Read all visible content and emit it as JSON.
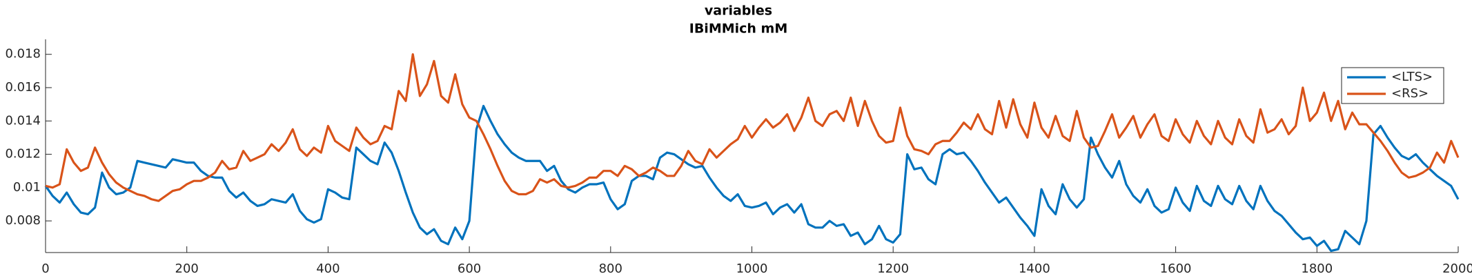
{
  "chart_data": {
    "type": "line",
    "title": "variables",
    "subtitle": "IBiMMich mM",
    "x": [
      0,
      10,
      20,
      30,
      40,
      50,
      60,
      70,
      80,
      90,
      100,
      110,
      120,
      130,
      140,
      150,
      160,
      170,
      180,
      190,
      200,
      210,
      220,
      230,
      240,
      250,
      260,
      270,
      280,
      290,
      300,
      310,
      320,
      330,
      340,
      350,
      360,
      370,
      380,
      390,
      400,
      410,
      420,
      430,
      440,
      450,
      460,
      470,
      480,
      490,
      500,
      510,
      520,
      530,
      540,
      550,
      560,
      570,
      580,
      590,
      600,
      610,
      620,
      630,
      640,
      650,
      660,
      670,
      680,
      690,
      700,
      710,
      720,
      730,
      740,
      750,
      760,
      770,
      780,
      790,
      800,
      810,
      820,
      830,
      840,
      850,
      860,
      870,
      880,
      890,
      900,
      910,
      920,
      930,
      940,
      950,
      960,
      970,
      980,
      990,
      1000,
      1010,
      1020,
      1030,
      1040,
      1050,
      1060,
      1070,
      1080,
      1090,
      1100,
      1110,
      1120,
      1130,
      1140,
      1150,
      1160,
      1170,
      1180,
      1190,
      1200,
      1210,
      1220,
      1230,
      1240,
      1250,
      1260,
      1270,
      1280,
      1290,
      1300,
      1310,
      1320,
      1330,
      1340,
      1350,
      1360,
      1370,
      1380,
      1390,
      1400,
      1410,
      1420,
      1430,
      1440,
      1450,
      1460,
      1470,
      1480,
      1490,
      1500,
      1510,
      1520,
      1530,
      1540,
      1550,
      1560,
      1570,
      1580,
      1590,
      1600,
      1610,
      1620,
      1630,
      1640,
      1650,
      1660,
      1670,
      1680,
      1690,
      1700,
      1710,
      1720,
      1730,
      1740,
      1750,
      1760,
      1770,
      1780,
      1790,
      1800,
      1810,
      1820,
      1830,
      1840,
      1850,
      1860,
      1870,
      1880,
      1890,
      1900,
      1910,
      1920,
      1930,
      1940,
      1950,
      1960,
      1970,
      1980,
      1990,
      2000
    ],
    "series": [
      {
        "name": "<LTS>",
        "color": "#0072BD",
        "values": [
          0.0101,
          0.0095,
          0.0091,
          0.0097,
          0.009,
          0.0085,
          0.0084,
          0.0088,
          0.0109,
          0.01,
          0.0096,
          0.0097,
          0.01,
          0.0116,
          0.0115,
          0.0114,
          0.0113,
          0.0112,
          0.0117,
          0.0116,
          0.0115,
          0.0115,
          0.011,
          0.0107,
          0.0106,
          0.0106,
          0.0098,
          0.0094,
          0.0097,
          0.0092,
          0.0089,
          0.009,
          0.0093,
          0.0092,
          0.0091,
          0.0096,
          0.0086,
          0.0081,
          0.0079,
          0.0081,
          0.0099,
          0.0097,
          0.0094,
          0.0093,
          0.0124,
          0.012,
          0.0116,
          0.0114,
          0.0127,
          0.0121,
          0.011,
          0.0097,
          0.0085,
          0.0076,
          0.0072,
          0.0075,
          0.0068,
          0.0066,
          0.0076,
          0.0069,
          0.008,
          0.0135,
          0.0149,
          0.014,
          0.0132,
          0.0126,
          0.0121,
          0.0118,
          0.0116,
          0.0116,
          0.0116,
          0.011,
          0.0113,
          0.0104,
          0.0099,
          0.0097,
          0.01,
          0.0102,
          0.0102,
          0.0103,
          0.0093,
          0.0087,
          0.009,
          0.0104,
          0.0107,
          0.0107,
          0.0105,
          0.0118,
          0.0121,
          0.012,
          0.0117,
          0.0114,
          0.0112,
          0.0113,
          0.0106,
          0.01,
          0.0095,
          0.0092,
          0.0096,
          0.0089,
          0.0088,
          0.0089,
          0.0091,
          0.0084,
          0.0088,
          0.009,
          0.0085,
          0.009,
          0.0078,
          0.0076,
          0.0076,
          0.008,
          0.0077,
          0.0078,
          0.0071,
          0.0073,
          0.0066,
          0.0069,
          0.0077,
          0.0069,
          0.0067,
          0.0072,
          0.012,
          0.0111,
          0.0112,
          0.0105,
          0.0102,
          0.012,
          0.0123,
          0.012,
          0.0121,
          0.0116,
          0.011,
          0.0103,
          0.0097,
          0.0091,
          0.0094,
          0.0088,
          0.0082,
          0.0077,
          0.0071,
          0.0099,
          0.0089,
          0.0084,
          0.0102,
          0.0093,
          0.0088,
          0.0093,
          0.013,
          0.012,
          0.0112,
          0.0106,
          0.0116,
          0.0102,
          0.0095,
          0.0091,
          0.0099,
          0.0089,
          0.0085,
          0.0087,
          0.01,
          0.0091,
          0.0086,
          0.0101,
          0.0092,
          0.0089,
          0.0101,
          0.0093,
          0.009,
          0.0101,
          0.0092,
          0.0087,
          0.0101,
          0.0092,
          0.0086,
          0.0083,
          0.0078,
          0.0073,
          0.0069,
          0.007,
          0.0065,
          0.0068,
          0.0062,
          0.0063,
          0.0074,
          0.007,
          0.0066,
          0.008,
          0.0132,
          0.0137,
          0.013,
          0.0124,
          0.0119,
          0.0117,
          0.012,
          0.0115,
          0.0111,
          0.0107,
          0.0104,
          0.0101,
          0.0093
        ]
      },
      {
        "name": "<RS>",
        "color": "#D95319",
        "values": [
          0.0101,
          0.01,
          0.0102,
          0.0123,
          0.0115,
          0.011,
          0.0112,
          0.0124,
          0.0115,
          0.0108,
          0.0103,
          0.01,
          0.0098,
          0.0096,
          0.0095,
          0.0093,
          0.0092,
          0.0095,
          0.0098,
          0.0099,
          0.0102,
          0.0104,
          0.0104,
          0.0106,
          0.0109,
          0.0116,
          0.0111,
          0.0112,
          0.0122,
          0.0116,
          0.0118,
          0.012,
          0.0126,
          0.0122,
          0.0127,
          0.0135,
          0.0123,
          0.0119,
          0.0124,
          0.0121,
          0.0137,
          0.0128,
          0.0125,
          0.0122,
          0.0136,
          0.013,
          0.0126,
          0.0128,
          0.0137,
          0.0135,
          0.0158,
          0.0152,
          0.018,
          0.0155,
          0.0162,
          0.0176,
          0.0155,
          0.0151,
          0.0168,
          0.015,
          0.0142,
          0.014,
          0.0132,
          0.0123,
          0.0113,
          0.0104,
          0.0098,
          0.0096,
          0.0096,
          0.0098,
          0.0105,
          0.0103,
          0.0105,
          0.0101,
          0.01,
          0.0101,
          0.0103,
          0.0106,
          0.0106,
          0.011,
          0.011,
          0.0107,
          0.0113,
          0.0111,
          0.0107,
          0.0109,
          0.0112,
          0.011,
          0.0107,
          0.0107,
          0.0113,
          0.0122,
          0.0116,
          0.0114,
          0.0123,
          0.0118,
          0.0122,
          0.0126,
          0.0129,
          0.0137,
          0.013,
          0.0136,
          0.0141,
          0.0136,
          0.0139,
          0.0144,
          0.0134,
          0.0142,
          0.0154,
          0.014,
          0.0137,
          0.0144,
          0.0146,
          0.014,
          0.0154,
          0.0137,
          0.0152,
          0.014,
          0.0131,
          0.0127,
          0.0128,
          0.0148,
          0.0131,
          0.0123,
          0.0122,
          0.012,
          0.0126,
          0.0128,
          0.0128,
          0.0133,
          0.0139,
          0.0135,
          0.0144,
          0.0135,
          0.0132,
          0.0152,
          0.0136,
          0.0153,
          0.0138,
          0.013,
          0.0151,
          0.0136,
          0.013,
          0.0143,
          0.0131,
          0.0128,
          0.0146,
          0.013,
          0.0124,
          0.0125,
          0.0134,
          0.0144,
          0.013,
          0.0136,
          0.0143,
          0.013,
          0.0138,
          0.0144,
          0.0131,
          0.0128,
          0.0141,
          0.0132,
          0.0127,
          0.014,
          0.0131,
          0.0126,
          0.014,
          0.013,
          0.0126,
          0.0141,
          0.0131,
          0.0127,
          0.0147,
          0.0133,
          0.0135,
          0.0141,
          0.0132,
          0.0137,
          0.016,
          0.014,
          0.0145,
          0.0157,
          0.014,
          0.0152,
          0.0135,
          0.0145,
          0.0138,
          0.0138,
          0.0133,
          0.0128,
          0.0122,
          0.0115,
          0.0109,
          0.0106,
          0.0107,
          0.0109,
          0.0112,
          0.0121,
          0.0115,
          0.0128,
          0.0118
        ]
      }
    ],
    "xlim": [
      0,
      2000
    ],
    "xticks": [
      0,
      200,
      400,
      600,
      800,
      1000,
      1200,
      1400,
      1600,
      1800,
      2000
    ],
    "ylim": [
      0.0061,
      0.0189
    ],
    "yticks": [
      0.008,
      0.01,
      0.012,
      0.014,
      0.016,
      0.018
    ],
    "grid": false,
    "legend": "northeast"
  }
}
